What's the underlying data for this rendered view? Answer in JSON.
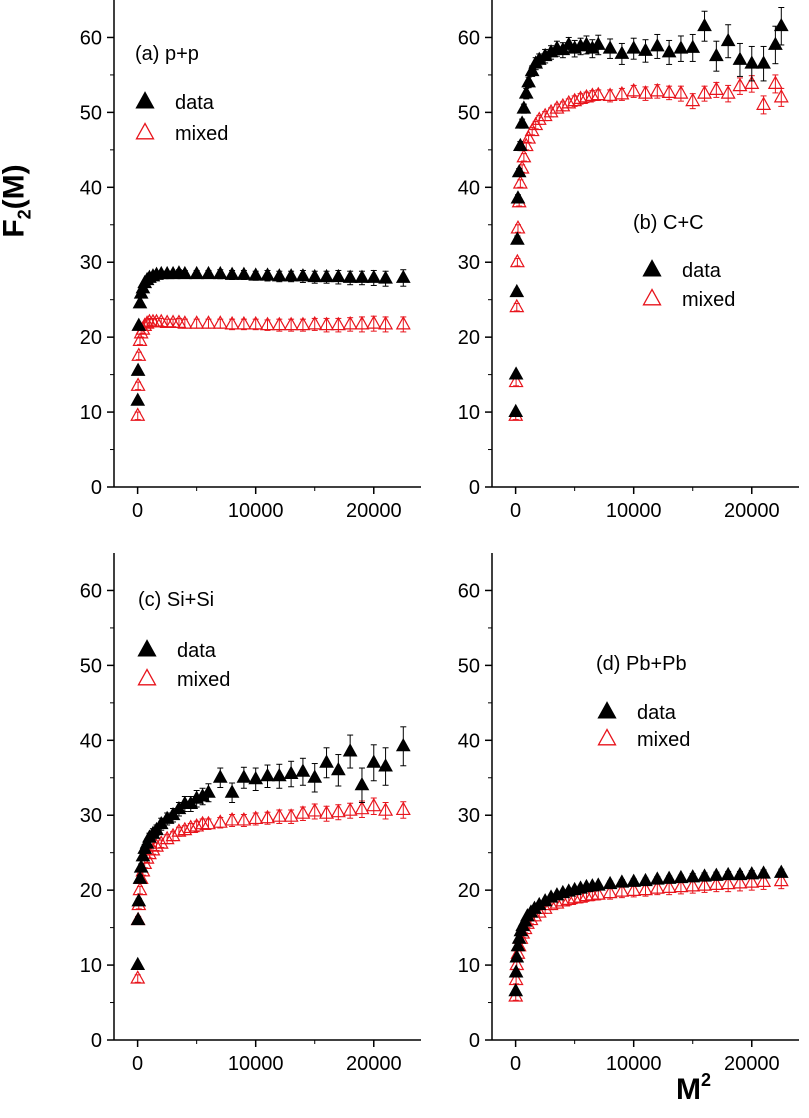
{
  "figure": {
    "ylabel_main": "F",
    "ylabel_sub": "2",
    "ylabel_tail": "(M)",
    "xlabel_main": "M",
    "xlabel_sup": "2"
  },
  "colors": {
    "data": "#000000",
    "mixed": "#e8141c"
  },
  "chart_data": [
    {
      "type": "scatter",
      "title": "(a) p+p",
      "xlim": [
        -2000,
        24000
      ],
      "ylim": [
        0,
        65
      ],
      "xticks": [
        0,
        10000,
        20000
      ],
      "yticks": [
        0,
        10,
        20,
        30,
        40,
        50,
        60
      ],
      "legend": {
        "placement": "top-left",
        "entries": [
          "data",
          "mixed"
        ]
      },
      "series": [
        {
          "name": "data",
          "marker": "filled-triangle",
          "x": [
            10,
            40,
            100,
            200,
            300,
            450,
            600,
            800,
            1000,
            1300,
            1600,
            2000,
            2500,
            3000,
            3500,
            4000,
            5000,
            6000,
            7000,
            8000,
            9000,
            10000,
            11000,
            12000,
            13000,
            14000,
            15000,
            16000,
            17000,
            18000,
            19000,
            20000,
            21000,
            22500
          ],
          "y": [
            11.5,
            15.5,
            21.5,
            24.5,
            25.8,
            26.5,
            27.2,
            27.6,
            27.9,
            28.1,
            28.3,
            28.4,
            28.4,
            28.4,
            28.5,
            28.4,
            28.4,
            28.4,
            28.4,
            28.3,
            28.3,
            28.2,
            28.2,
            28.1,
            28.1,
            28.1,
            28.0,
            28.0,
            28.0,
            27.9,
            27.9,
            27.9,
            27.8,
            27.9
          ],
          "err": [
            0.3,
            0.3,
            0.3,
            0.3,
            0.3,
            0.3,
            0.3,
            0.3,
            0.3,
            0.4,
            0.4,
            0.4,
            0.4,
            0.4,
            0.5,
            0.5,
            0.5,
            0.5,
            0.6,
            0.6,
            0.6,
            0.6,
            0.7,
            0.7,
            0.7,
            0.8,
            0.8,
            0.8,
            0.9,
            0.9,
            0.9,
            1.0,
            1.0,
            1.1
          ]
        },
        {
          "name": "mixed",
          "marker": "open-triangle",
          "x": [
            10,
            40,
            100,
            200,
            300,
            450,
            600,
            800,
            1000,
            1300,
            1600,
            2000,
            2500,
            3000,
            3500,
            4000,
            5000,
            6000,
            7000,
            8000,
            9000,
            10000,
            11000,
            12000,
            13000,
            14000,
            15000,
            16000,
            17000,
            18000,
            19000,
            20000,
            21000,
            22500
          ],
          "y": [
            9.5,
            13.5,
            17.5,
            19.5,
            20.5,
            21.0,
            21.5,
            21.8,
            22.0,
            22.0,
            22.0,
            22.0,
            21.9,
            21.9,
            21.9,
            21.8,
            21.8,
            21.8,
            21.8,
            21.7,
            21.7,
            21.7,
            21.6,
            21.6,
            21.6,
            21.6,
            21.7,
            21.6,
            21.6,
            21.7,
            21.7,
            21.8,
            21.7,
            21.7
          ],
          "err": [
            0.5,
            0.5,
            0.5,
            0.5,
            0.5,
            0.5,
            0.5,
            0.5,
            0.5,
            0.5,
            0.5,
            0.5,
            0.5,
            0.5,
            0.6,
            0.6,
            0.6,
            0.6,
            0.6,
            0.7,
            0.7,
            0.7,
            0.7,
            0.8,
            0.8,
            0.8,
            0.8,
            0.9,
            0.9,
            0.9,
            1.0,
            1.0,
            1.0,
            1.0
          ]
        }
      ]
    },
    {
      "type": "scatter",
      "title": "(b) C+C",
      "xlim": [
        -2000,
        24000
      ],
      "ylim": [
        0,
        65
      ],
      "xticks": [
        0,
        10000,
        20000
      ],
      "yticks": [
        0,
        10,
        20,
        30,
        40,
        50,
        60
      ],
      "legend": {
        "placement": "middle-right",
        "entries": [
          "data",
          "mixed"
        ]
      },
      "series": [
        {
          "name": "data",
          "marker": "filled-triangle",
          "x": [
            10,
            40,
            100,
            150,
            200,
            300,
            400,
            550,
            700,
            900,
            1100,
            1400,
            1700,
            2000,
            2500,
            3000,
            3500,
            4000,
            4500,
            5000,
            5500,
            6000,
            6500,
            7000,
            8000,
            9000,
            10000,
            11000,
            12000,
            13000,
            14000,
            15000,
            16000,
            17000,
            18000,
            19000,
            20000,
            21000,
            22000,
            22500
          ],
          "y": [
            10,
            15,
            26,
            33,
            38.5,
            42,
            45.5,
            48.5,
            50.5,
            52.5,
            54,
            55.5,
            56.5,
            57,
            57.5,
            58,
            58.5,
            58.3,
            59,
            58.5,
            58.8,
            59,
            58.5,
            59,
            58.5,
            57.8,
            58.5,
            58.2,
            58.8,
            58,
            58.5,
            58.6,
            61.5,
            57.5,
            59.5,
            57,
            56.5,
            56.5,
            59,
            61.5
          ],
          "err": [
            0.2,
            0.3,
            0.4,
            0.5,
            0.5,
            0.5,
            0.6,
            0.6,
            0.6,
            0.7,
            0.7,
            0.7,
            0.8,
            0.8,
            0.9,
            0.9,
            1.0,
            1.0,
            1.0,
            1.1,
            1.1,
            1.2,
            1.2,
            1.3,
            1.3,
            1.4,
            1.4,
            1.5,
            1.6,
            1.6,
            1.7,
            1.8,
            2.0,
            2.0,
            2.2,
            2.2,
            2.3,
            2.3,
            2.5,
            2.5
          ]
        },
        {
          "name": "mixed",
          "marker": "open-triangle",
          "x": [
            10,
            40,
            100,
            150,
            200,
            300,
            400,
            550,
            700,
            900,
            1100,
            1400,
            1700,
            2000,
            2500,
            3000,
            3500,
            4000,
            4500,
            5000,
            5500,
            6000,
            6500,
            7000,
            8000,
            9000,
            10000,
            11000,
            12000,
            13000,
            14000,
            15000,
            16000,
            17000,
            18000,
            19000,
            20000,
            21000,
            22000,
            22500
          ],
          "y": [
            9.5,
            14,
            24,
            30,
            34.5,
            38,
            40.5,
            42.5,
            44,
            45.5,
            46.5,
            47.5,
            48.3,
            49,
            49.5,
            50,
            50.5,
            50.8,
            51.2,
            51.5,
            51.8,
            52,
            52.2,
            52.3,
            52.2,
            52.4,
            52.8,
            52.5,
            52.8,
            52.6,
            52.5,
            51.5,
            52.5,
            53,
            52.5,
            53.5,
            53.8,
            51,
            53.8,
            52
          ],
          "err": [
            0.5,
            0.5,
            0.5,
            0.5,
            0.5,
            0.5,
            0.5,
            0.5,
            0.5,
            0.5,
            0.5,
            0.5,
            0.5,
            0.6,
            0.6,
            0.6,
            0.6,
            0.6,
            0.6,
            0.7,
            0.7,
            0.7,
            0.7,
            0.7,
            0.8,
            0.8,
            0.8,
            0.9,
            0.9,
            0.9,
            1.0,
            1.0,
            1.0,
            1.0,
            1.1,
            1.1,
            1.1,
            1.2,
            1.2,
            1.2
          ]
        }
      ]
    },
    {
      "type": "scatter",
      "title": "(c) Si+Si",
      "xlim": [
        -2000,
        24000
      ],
      "ylim": [
        0,
        65
      ],
      "xticks": [
        0,
        10000,
        20000
      ],
      "yticks": [
        0,
        10,
        20,
        30,
        40,
        50,
        60
      ],
      "legend": {
        "placement": "top-left",
        "entries": [
          "data",
          "mixed"
        ]
      },
      "series": [
        {
          "name": "data",
          "marker": "filled-triangle",
          "x": [
            10,
            40,
            100,
            200,
            300,
            450,
            600,
            800,
            1000,
            1300,
            1600,
            2000,
            2500,
            3000,
            3500,
            4000,
            4500,
            5000,
            5500,
            6000,
            7000,
            8000,
            9000,
            10000,
            11000,
            12000,
            13000,
            14000,
            15000,
            16000,
            17000,
            18000,
            19000,
            20000,
            21000,
            22500
          ],
          "y": [
            10,
            16,
            18.5,
            21.5,
            23,
            24.5,
            25.5,
            26.2,
            27,
            27.5,
            28,
            28.8,
            29.5,
            30,
            30.8,
            31.5,
            31.5,
            32.2,
            32.5,
            33,
            35,
            33,
            35,
            34.8,
            35.2,
            35.2,
            35.5,
            35.8,
            35,
            37,
            36,
            38.5,
            34,
            37,
            36.5,
            39.2
          ],
          "err": [
            0.3,
            0.4,
            0.4,
            0.5,
            0.5,
            0.5,
            0.6,
            0.6,
            0.6,
            0.7,
            0.7,
            0.8,
            0.8,
            0.9,
            0.9,
            1.0,
            1.0,
            1.1,
            1.1,
            1.2,
            1.3,
            1.3,
            1.4,
            1.5,
            1.5,
            1.6,
            1.7,
            1.8,
            1.9,
            2.0,
            2.1,
            2.2,
            2.3,
            2.4,
            2.5,
            2.6
          ]
        },
        {
          "name": "mixed",
          "marker": "open-triangle",
          "x": [
            10,
            40,
            100,
            200,
            300,
            450,
            600,
            800,
            1000,
            1300,
            1600,
            2000,
            2500,
            3000,
            3500,
            4000,
            4500,
            5000,
            5500,
            6000,
            7000,
            8000,
            9000,
            10000,
            11000,
            12000,
            13000,
            14000,
            15000,
            16000,
            17000,
            18000,
            19000,
            20000,
            21000,
            22500
          ],
          "y": [
            8.2,
            16,
            18,
            20,
            21.5,
            22.5,
            23.5,
            24.2,
            24.8,
            25.3,
            25.8,
            26.2,
            26.8,
            27.2,
            27.8,
            28,
            28.3,
            28.5,
            28.8,
            28.8,
            29,
            29.3,
            29.3,
            29.5,
            29.6,
            29.8,
            29.8,
            30.2,
            30.5,
            30.2,
            30.4,
            30.6,
            30.8,
            31.2,
            30.6,
            30.7
          ],
          "err": [
            0.5,
            0.5,
            0.5,
            0.5,
            0.5,
            0.5,
            0.5,
            0.5,
            0.5,
            0.5,
            0.5,
            0.5,
            0.6,
            0.6,
            0.6,
            0.6,
            0.6,
            0.7,
            0.7,
            0.7,
            0.7,
            0.8,
            0.8,
            0.8,
            0.8,
            0.9,
            0.9,
            0.9,
            1.0,
            1.0,
            1.0,
            1.0,
            1.1,
            1.1,
            1.1,
            1.1
          ]
        }
      ]
    },
    {
      "type": "scatter",
      "title": "(d) Pb+Pb",
      "xlim": [
        -2000,
        24000
      ],
      "ylim": [
        0,
        65
      ],
      "xticks": [
        0,
        10000,
        20000
      ],
      "yticks": [
        0,
        10,
        20,
        30,
        40,
        50,
        60
      ],
      "legend": {
        "placement": "middle-right",
        "entries": [
          "data",
          "mixed"
        ]
      },
      "series": [
        {
          "name": "data",
          "marker": "filled-triangle",
          "x": [
            10,
            40,
            100,
            200,
            300,
            450,
            600,
            800,
            1000,
            1300,
            1600,
            2000,
            2500,
            3000,
            3500,
            4000,
            4500,
            5000,
            5500,
            6000,
            6500,
            7000,
            8000,
            9000,
            10000,
            11000,
            12000,
            13000,
            14000,
            15000,
            16000,
            17000,
            18000,
            19000,
            20000,
            21000,
            22500
          ],
          "y": [
            6.5,
            9,
            11,
            12.5,
            13.5,
            14.5,
            15.2,
            15.8,
            16.5,
            17,
            17.5,
            18,
            18.5,
            19,
            19.3,
            19.6,
            19.8,
            20,
            20.2,
            20.4,
            20.5,
            20.6,
            20.8,
            21,
            21.1,
            21.2,
            21.4,
            21.5,
            21.6,
            21.7,
            21.8,
            21.9,
            22,
            22,
            22.1,
            22.2,
            22.3
          ],
          "err": [
            0.2,
            0.2,
            0.2,
            0.2,
            0.2,
            0.2,
            0.2,
            0.2,
            0.2,
            0.2,
            0.2,
            0.3,
            0.3,
            0.3,
            0.3,
            0.3,
            0.3,
            0.3,
            0.3,
            0.3,
            0.3,
            0.3,
            0.4,
            0.4,
            0.4,
            0.4,
            0.4,
            0.4,
            0.4,
            0.5,
            0.5,
            0.5,
            0.5,
            0.5,
            0.5,
            0.5,
            0.5
          ]
        },
        {
          "name": "mixed",
          "marker": "open-triangle",
          "x": [
            10,
            40,
            100,
            200,
            300,
            450,
            600,
            800,
            1000,
            1300,
            1600,
            2000,
            2500,
            3000,
            3500,
            4000,
            4500,
            5000,
            5500,
            6000,
            6500,
            7000,
            8000,
            9000,
            10000,
            11000,
            12000,
            13000,
            14000,
            15000,
            16000,
            17000,
            18000,
            19000,
            20000,
            21000,
            22500
          ],
          "y": [
            5.8,
            8,
            10,
            11.5,
            12.5,
            13.5,
            14.2,
            14.8,
            15.5,
            16,
            16.5,
            17,
            17.5,
            18,
            18.2,
            18.5,
            18.7,
            18.9,
            19,
            19.2,
            19.3,
            19.4,
            19.6,
            19.8,
            19.9,
            20,
            20.2,
            20.3,
            20.4,
            20.5,
            20.6,
            20.7,
            20.8,
            20.9,
            21,
            21.1,
            21.2
          ],
          "err": [
            0.5,
            0.5,
            0.5,
            0.5,
            0.5,
            0.5,
            0.5,
            0.5,
            0.5,
            0.5,
            0.6,
            0.6,
            0.6,
            0.6,
            0.6,
            0.6,
            0.7,
            0.7,
            0.7,
            0.7,
            0.7,
            0.7,
            0.8,
            0.8,
            0.8,
            0.8,
            0.8,
            0.9,
            0.9,
            0.9,
            0.9,
            0.9,
            1.0,
            1.0,
            1.0,
            1.0,
            1.0
          ]
        }
      ]
    }
  ]
}
